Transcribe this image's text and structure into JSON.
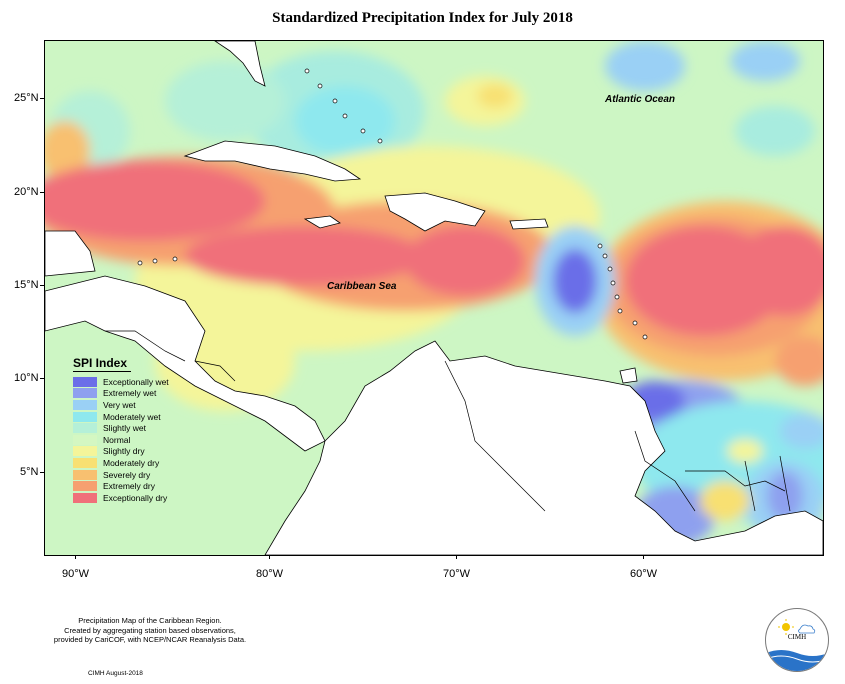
{
  "title": "Standardized Precipitation Index for July 2018",
  "map": {
    "labels": {
      "atlantic": "Atlantic Ocean",
      "caribbean": "Caribbean Sea"
    },
    "lat_ticks": [
      "25°N",
      "20°N",
      "15°N",
      "10°N",
      "5°N"
    ],
    "lon_ticks": [
      "90°W",
      "80°W",
      "70°W",
      "60°W"
    ]
  },
  "legend": {
    "title": "SPI Index",
    "items": [
      {
        "label": "Exceptionally wet",
        "color": "#6b6ee8"
      },
      {
        "label": "Extremely wet",
        "color": "#8ea0ef"
      },
      {
        "label": "Very wet",
        "color": "#9ad0f5"
      },
      {
        "label": "Moderately wet",
        "color": "#8ee8ee"
      },
      {
        "label": "Slightly wet",
        "color": "#b5f0d8"
      },
      {
        "label": "Normal",
        "color": "#d4f7c2"
      },
      {
        "label": "Slightly dry",
        "color": "#f4f59a"
      },
      {
        "label": "Moderately dry",
        "color": "#f8e072"
      },
      {
        "label": "Severely dry",
        "color": "#f8c070"
      },
      {
        "label": "Extremely dry",
        "color": "#f6a070"
      },
      {
        "label": "Exceptionally dry",
        "color": "#f0707a"
      }
    ]
  },
  "footer": {
    "line1": "Precipitation Map of the Caribbean Region.",
    "line2": "Created by aggregating station based observations,",
    "line3": "provided by CariCOF, with NCEP/NCAR Reanalysis Data.",
    "date": "CIMH August-2018"
  },
  "logo": {
    "text": "CIMH"
  }
}
